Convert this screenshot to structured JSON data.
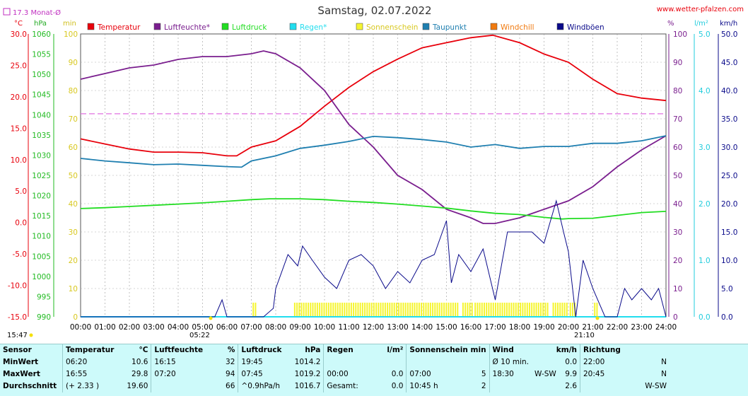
{
  "title": "Samstag, 02.07.2022",
  "website": "www.wetter-pfalzen.com",
  "month_avg_label": "17.3 Monat-Ø",
  "unit_labels": {
    "temp": "°C",
    "pressure": "hPa",
    "percent_min": "min",
    "percent": "%",
    "rain": "l/m²",
    "wind": "km/h"
  },
  "sun_labels": {
    "sunrise": "05:22",
    "sunset": "21:10",
    "time_now": "15:47"
  },
  "colors": {
    "temperatur": "#e8000b",
    "luftfeuchte": "#7a1e8e",
    "luftdruck": "#22dd22",
    "regen": "#22ddee",
    "sonnenschein": "#f5f530",
    "taupunkt": "#1f7fb0",
    "windchill": "#f07a10",
    "windboen": "#0a0a8a",
    "avgline": "#e070e0",
    "background": "#ffffff",
    "stats_bg": "#cdfafa"
  },
  "chart_data": {
    "type": "line",
    "title": "Samstag, 02.07.2022",
    "x_ticks": [
      "00:00",
      "01:00",
      "02:00",
      "03:00",
      "04:00",
      "05:00",
      "06:00",
      "07:00",
      "08:00",
      "09:00",
      "10:00",
      "11:00",
      "12:00",
      "13:00",
      "14:00",
      "15:00",
      "16:00",
      "17:00",
      "18:00",
      "19:00",
      "20:00",
      "21:00",
      "22:00",
      "23:00",
      "24:00"
    ],
    "xlim_hours": [
      0,
      24
    ],
    "axes": {
      "temp": {
        "unit": "°C",
        "range": [
          -15,
          30
        ],
        "ticks": [
          "30.0",
          "25.0",
          "20.0",
          "15.0",
          "10.0",
          "5.0",
          "0.0",
          "-5.0",
          "-10.0",
          "-15.0"
        ]
      },
      "pressure": {
        "unit": "hPa",
        "range": [
          990,
          1060
        ],
        "ticks": [
          "1060",
          "1055",
          "1050",
          "1045",
          "1040",
          "1035",
          "1030",
          "1025",
          "1020",
          "1015",
          "1010",
          "1005",
          "1000",
          "995",
          "990"
        ]
      },
      "minutes": {
        "unit": "min",
        "range": [
          0,
          100
        ],
        "ticks": [
          "100",
          "90",
          "80",
          "70",
          "60",
          "50",
          "40",
          "30",
          "20",
          "10",
          "0"
        ]
      },
      "percent": {
        "unit": "%",
        "range": [
          0,
          100
        ],
        "ticks": [
          "100",
          "90",
          "80",
          "70",
          "60",
          "50",
          "40",
          "30",
          "20",
          "10",
          "0"
        ]
      },
      "rain": {
        "unit": "l/m²",
        "range": [
          0,
          5
        ],
        "ticks": [
          "5.0",
          "4.0",
          "3.0",
          "2.0",
          "1.0",
          "0.0"
        ]
      },
      "wind": {
        "unit": "km/h",
        "range": [
          0,
          50
        ],
        "ticks": [
          "50.0",
          "45.0",
          "40.0",
          "35.0",
          "30.0",
          "25.0",
          "20.0",
          "15.0",
          "10.0",
          "5.0",
          "0.0"
        ]
      }
    },
    "month_avg_temp": 17.3,
    "legend": [
      "Temperatur",
      "Luftfeuchte*",
      "Luftdruck",
      "Regen*",
      "Sonnenschein",
      "Taupunkt",
      "Windchill",
      "Windböen"
    ],
    "series": [
      {
        "name": "Temperatur",
        "axis": "temp",
        "points": [
          [
            0,
            13.3
          ],
          [
            1,
            12.5
          ],
          [
            2,
            11.7
          ],
          [
            3,
            11.2
          ],
          [
            4,
            11.2
          ],
          [
            5,
            11.1
          ],
          [
            6,
            10.6
          ],
          [
            6.4,
            10.6
          ],
          [
            7,
            12.0
          ],
          [
            8,
            13.0
          ],
          [
            9,
            15.3
          ],
          [
            10,
            18.5
          ],
          [
            11,
            21.5
          ],
          [
            12,
            24.0
          ],
          [
            13,
            26.0
          ],
          [
            14,
            27.8
          ],
          [
            15,
            28.6
          ],
          [
            16,
            29.4
          ],
          [
            16.9,
            29.8
          ],
          [
            18,
            28.6
          ],
          [
            19,
            26.8
          ],
          [
            20,
            25.5
          ],
          [
            21,
            22.8
          ],
          [
            22,
            20.5
          ],
          [
            23,
            19.8
          ],
          [
            24,
            19.4
          ]
        ]
      },
      {
        "name": "Luftfeuchte*",
        "axis": "percent",
        "points": [
          [
            0,
            84
          ],
          [
            1,
            86
          ],
          [
            2,
            88
          ],
          [
            3,
            89
          ],
          [
            4,
            91
          ],
          [
            5,
            92
          ],
          [
            6,
            92
          ],
          [
            7,
            93
          ],
          [
            7.5,
            94
          ],
          [
            8,
            93
          ],
          [
            9,
            88
          ],
          [
            10,
            80
          ],
          [
            11,
            68
          ],
          [
            12,
            60
          ],
          [
            13,
            50
          ],
          [
            14,
            45
          ],
          [
            15,
            38
          ],
          [
            16,
            35
          ],
          [
            16.5,
            33
          ],
          [
            17,
            33
          ],
          [
            18,
            35
          ],
          [
            19,
            38
          ],
          [
            20,
            41
          ],
          [
            21,
            46
          ],
          [
            22,
            53
          ],
          [
            23,
            59
          ],
          [
            24,
            64
          ]
        ]
      },
      {
        "name": "Luftdruck",
        "axis": "pressure",
        "points": [
          [
            0,
            1016.8
          ],
          [
            1,
            1017.0
          ],
          [
            2,
            1017.3
          ],
          [
            3,
            1017.6
          ],
          [
            4,
            1017.9
          ],
          [
            5,
            1018.2
          ],
          [
            6,
            1018.6
          ],
          [
            7,
            1019.0
          ],
          [
            7.75,
            1019.2
          ],
          [
            8,
            1019.2
          ],
          [
            9,
            1019.2
          ],
          [
            10,
            1019.0
          ],
          [
            11,
            1018.6
          ],
          [
            12,
            1018.3
          ],
          [
            13,
            1017.9
          ],
          [
            14,
            1017.4
          ],
          [
            15,
            1016.9
          ],
          [
            16,
            1016.2
          ],
          [
            17,
            1015.6
          ],
          [
            18,
            1015.3
          ],
          [
            19,
            1014.6
          ],
          [
            19.75,
            1014.2
          ],
          [
            20,
            1014.3
          ],
          [
            21,
            1014.4
          ],
          [
            22,
            1015.1
          ],
          [
            23,
            1015.8
          ],
          [
            24,
            1016.1
          ]
        ]
      },
      {
        "name": "Taupunkt",
        "axis": "temp",
        "points": [
          [
            0,
            10.2
          ],
          [
            1,
            9.8
          ],
          [
            2,
            9.5
          ],
          [
            3,
            9.2
          ],
          [
            4,
            9.3
          ],
          [
            5,
            9.1
          ],
          [
            6,
            8.9
          ],
          [
            6.6,
            8.8
          ],
          [
            7,
            9.8
          ],
          [
            8,
            10.6
          ],
          [
            9,
            11.8
          ],
          [
            10,
            12.3
          ],
          [
            11,
            12.9
          ],
          [
            12,
            13.7
          ],
          [
            13,
            13.5
          ],
          [
            14,
            13.2
          ],
          [
            15,
            12.8
          ],
          [
            16,
            12.0
          ],
          [
            17,
            12.4
          ],
          [
            18,
            11.8
          ],
          [
            19,
            12.1
          ],
          [
            20,
            12.1
          ],
          [
            21,
            12.6
          ],
          [
            22,
            12.6
          ],
          [
            23,
            13.0
          ],
          [
            24,
            13.8
          ]
        ]
      },
      {
        "name": "Windböen",
        "axis": "wind",
        "points": [
          [
            0,
            0
          ],
          [
            5.5,
            0
          ],
          [
            5.8,
            3
          ],
          [
            6,
            0
          ],
          [
            7.5,
            0
          ],
          [
            7.9,
            1.5
          ],
          [
            8,
            5
          ],
          [
            8.5,
            11
          ],
          [
            8.9,
            9
          ],
          [
            9.1,
            12.5
          ],
          [
            9.5,
            10
          ],
          [
            10,
            7
          ],
          [
            10.5,
            5
          ],
          [
            11,
            10
          ],
          [
            11.5,
            11
          ],
          [
            12,
            9
          ],
          [
            12.5,
            5
          ],
          [
            13,
            8
          ],
          [
            13.5,
            6
          ],
          [
            14,
            10
          ],
          [
            14.5,
            11
          ],
          [
            15,
            17
          ],
          [
            15.2,
            6
          ],
          [
            15.5,
            11
          ],
          [
            16,
            8
          ],
          [
            16.5,
            12
          ],
          [
            17,
            3
          ],
          [
            17.5,
            15
          ],
          [
            18,
            15
          ],
          [
            18.5,
            15
          ],
          [
            19,
            13
          ],
          [
            19.5,
            20.5
          ],
          [
            19.8,
            15
          ],
          [
            20,
            11.5
          ],
          [
            20.3,
            0
          ],
          [
            20.6,
            10
          ],
          [
            21,
            5
          ],
          [
            21.5,
            0
          ],
          [
            22,
            0
          ],
          [
            22.3,
            5
          ],
          [
            22.6,
            3
          ],
          [
            23,
            5
          ],
          [
            23.4,
            3
          ],
          [
            23.7,
            5
          ],
          [
            24,
            0
          ]
        ]
      }
    ],
    "sunshine_bars": [
      [
        7.05,
        7.15
      ],
      [
        8.75,
        15.5
      ],
      [
        15.65,
        16.05
      ],
      [
        16.15,
        19.15
      ],
      [
        19.35,
        19.95
      ],
      [
        20.05,
        20.3
      ],
      [
        21.05,
        21.2
      ]
    ]
  },
  "stats": {
    "headers": [
      "Sensor",
      "Temperatur",
      "°C",
      "Luftfeuchte",
      "%",
      "Luftdruck",
      "hPa",
      "Regen",
      "l/m²",
      "Sonnenschein min",
      "Wind",
      "km/h",
      "Richtung"
    ],
    "rows": [
      {
        "label": "MinWert",
        "t_time": "06:20",
        "t_val": "10.6",
        "h_time": "16:15",
        "h_val": "32",
        "p_time": "19:45",
        "p_val": "1014.2",
        "r_time": "",
        "r_val": "",
        "s_time": "",
        "s_val": "",
        "w_time": "Ø 10 min.",
        "w_dir": "",
        "w_val": "0.0",
        "d_time": "22:00",
        "d_val": "N"
      },
      {
        "label": "MaxWert",
        "t_time": "16:55",
        "t_val": "29.8",
        "h_time": "07:20",
        "h_val": "94",
        "p_time": "07:45",
        "p_val": "1019.2",
        "r_time": "00:00",
        "r_val": "0.0",
        "s_time": "07:00",
        "s_val": "5",
        "w_time": "18:30",
        "w_dir": "W-SW",
        "w_val": "9.9",
        "d_time": "20:45",
        "d_val": "N"
      },
      {
        "label": "Durchschnitt",
        "t_time": "(+ 2.33 )",
        "t_val": "19.60",
        "h_time": "",
        "h_val": "66",
        "p_time": "^0.9hPa/h",
        "p_val": "1016.7",
        "r_time": "Gesamt:",
        "r_val": "0.0",
        "s_time": "10:45 h",
        "s_val": "2",
        "w_time": "",
        "w_dir": "",
        "w_val": "2.6",
        "d_time": "",
        "d_val": "W-SW"
      }
    ]
  }
}
